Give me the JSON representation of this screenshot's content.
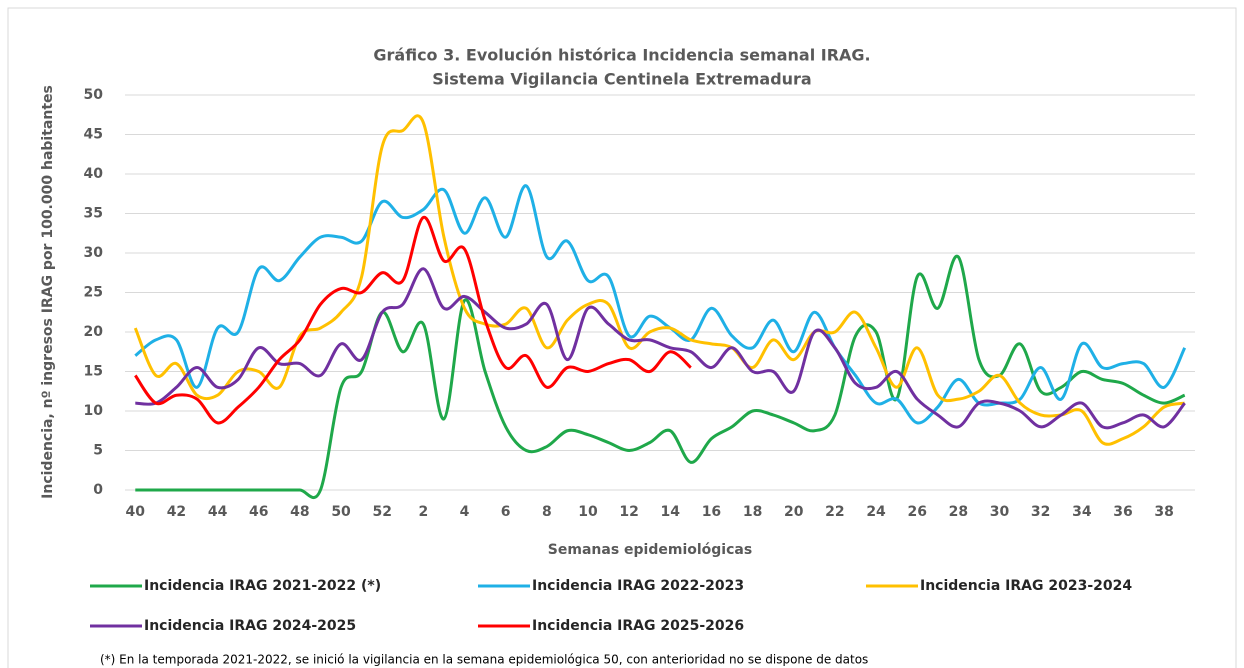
{
  "chart_data": {
    "type": "line",
    "title": "Gráfico 3. Evolución histórica Incidencia semanal IRAG.",
    "subtitle": "Sistema Vigilancia Centinela Extremadura",
    "x_label": "Semanas epidemiológicas",
    "y_label": "Incidencia, nº ingresos IRAG por 100.000 habitantes",
    "footnote": "(*) En la temporada 2021-2022, se inició la vigilancia en la semana epidemiológica 50, con anterioridad no se dispone de datos",
    "categories": [
      "40",
      null,
      "42",
      null,
      "44",
      null,
      "46",
      null,
      "48",
      null,
      "50",
      null,
      "52",
      null,
      "2",
      null,
      "4",
      null,
      "6",
      null,
      "8",
      null,
      "10",
      null,
      "12",
      null,
      "14",
      null,
      "16",
      null,
      "18",
      null,
      "20",
      null,
      "22",
      null,
      "24",
      null,
      "26",
      null,
      "28",
      null,
      "30",
      null,
      "32",
      null,
      "34",
      null,
      "36",
      null,
      "38",
      null
    ],
    "ylim": [
      0,
      50
    ],
    "yticks": [
      0,
      5,
      10,
      15,
      20,
      25,
      30,
      35,
      40,
      45,
      50
    ],
    "grid": true,
    "legend": "bottom",
    "series": [
      {
        "name": "Incidencia IRAG 2021-2022 (*)",
        "color": "#1fa84a",
        "values": [
          0,
          0,
          0,
          0,
          0,
          0,
          0,
          0,
          0,
          0,
          13,
          15,
          22.5,
          17.5,
          21,
          9,
          24,
          15,
          8,
          5,
          5.5,
          7.5,
          7,
          6,
          5,
          6,
          7.5,
          3.5,
          6.5,
          8,
          10,
          9.5,
          8.5,
          7.5,
          9.5,
          19.5,
          20,
          11.5,
          27,
          23,
          29.5,
          16.5,
          14.5,
          18.5,
          12.5,
          13,
          15,
          14,
          13.5,
          12,
          11,
          12
        ]
      },
      {
        "name": "Incidencia IRAG 2022-2023",
        "color": "#1fb0e6",
        "values": [
          17,
          19,
          19,
          13,
          20.5,
          20,
          28,
          26.5,
          29.5,
          32,
          32,
          31.5,
          36.5,
          34.5,
          35.5,
          38,
          32.5,
          37,
          32,
          38.5,
          29.5,
          31.5,
          26.5,
          27,
          19.5,
          22,
          20.5,
          19,
          23,
          19.5,
          18,
          21.5,
          17.5,
          22.5,
          18,
          14.5,
          11,
          11.5,
          8.5,
          10.5,
          14,
          11,
          11,
          11.5,
          15.5,
          11.5,
          18.5,
          15.5,
          16,
          16,
          13,
          18
        ]
      },
      {
        "name": "Incidencia IRAG 2023-2024",
        "color": "#ffc000",
        "values": [
          20.5,
          14.5,
          16,
          12,
          12,
          15,
          15,
          13,
          19.5,
          20.5,
          22.5,
          27,
          43.5,
          45.5,
          46.5,
          32,
          23,
          21,
          21,
          23,
          18,
          21.5,
          23.5,
          23.5,
          18,
          20,
          20.5,
          19,
          18.5,
          18,
          15.5,
          19,
          16.5,
          20,
          20,
          22.5,
          18,
          13,
          18,
          12,
          11.5,
          12.5,
          14.5,
          11,
          9.5,
          9.5,
          10,
          6,
          6.5,
          8,
          10.5,
          11
        ]
      },
      {
        "name": "Incidencia IRAG 2024-2025",
        "color": "#7030a0",
        "values": [
          11,
          11,
          13,
          15.5,
          13,
          14,
          18,
          16,
          16,
          14.5,
          18.5,
          16.5,
          22.5,
          23.5,
          28,
          23,
          24.5,
          22.5,
          20.5,
          21,
          23.5,
          16.5,
          23,
          21,
          19,
          19,
          18,
          17.5,
          15.5,
          18,
          15,
          15,
          12.5,
          20,
          18,
          13.5,
          13,
          15,
          11.5,
          9.5,
          8,
          11,
          11,
          10,
          8,
          9.5,
          11,
          8,
          8.5,
          9.5,
          8,
          11
        ]
      },
      {
        "name": "Incidencia IRAG 2025-2026",
        "color": "#ff0000",
        "values": [
          14.5,
          11,
          12,
          11.5,
          8.5,
          10.5,
          13,
          16.5,
          19,
          23.5,
          25.5,
          25,
          27.5,
          26.5,
          34.5,
          29,
          30.5,
          21.5,
          15.5,
          17,
          13,
          15.5,
          15,
          16,
          16.5,
          15,
          17.5,
          15.5,
          null,
          null,
          null,
          null,
          null,
          null,
          null,
          null,
          null,
          null,
          null,
          null,
          null,
          null,
          null,
          null,
          null,
          null,
          null,
          null,
          null,
          null,
          null,
          null
        ]
      }
    ]
  }
}
